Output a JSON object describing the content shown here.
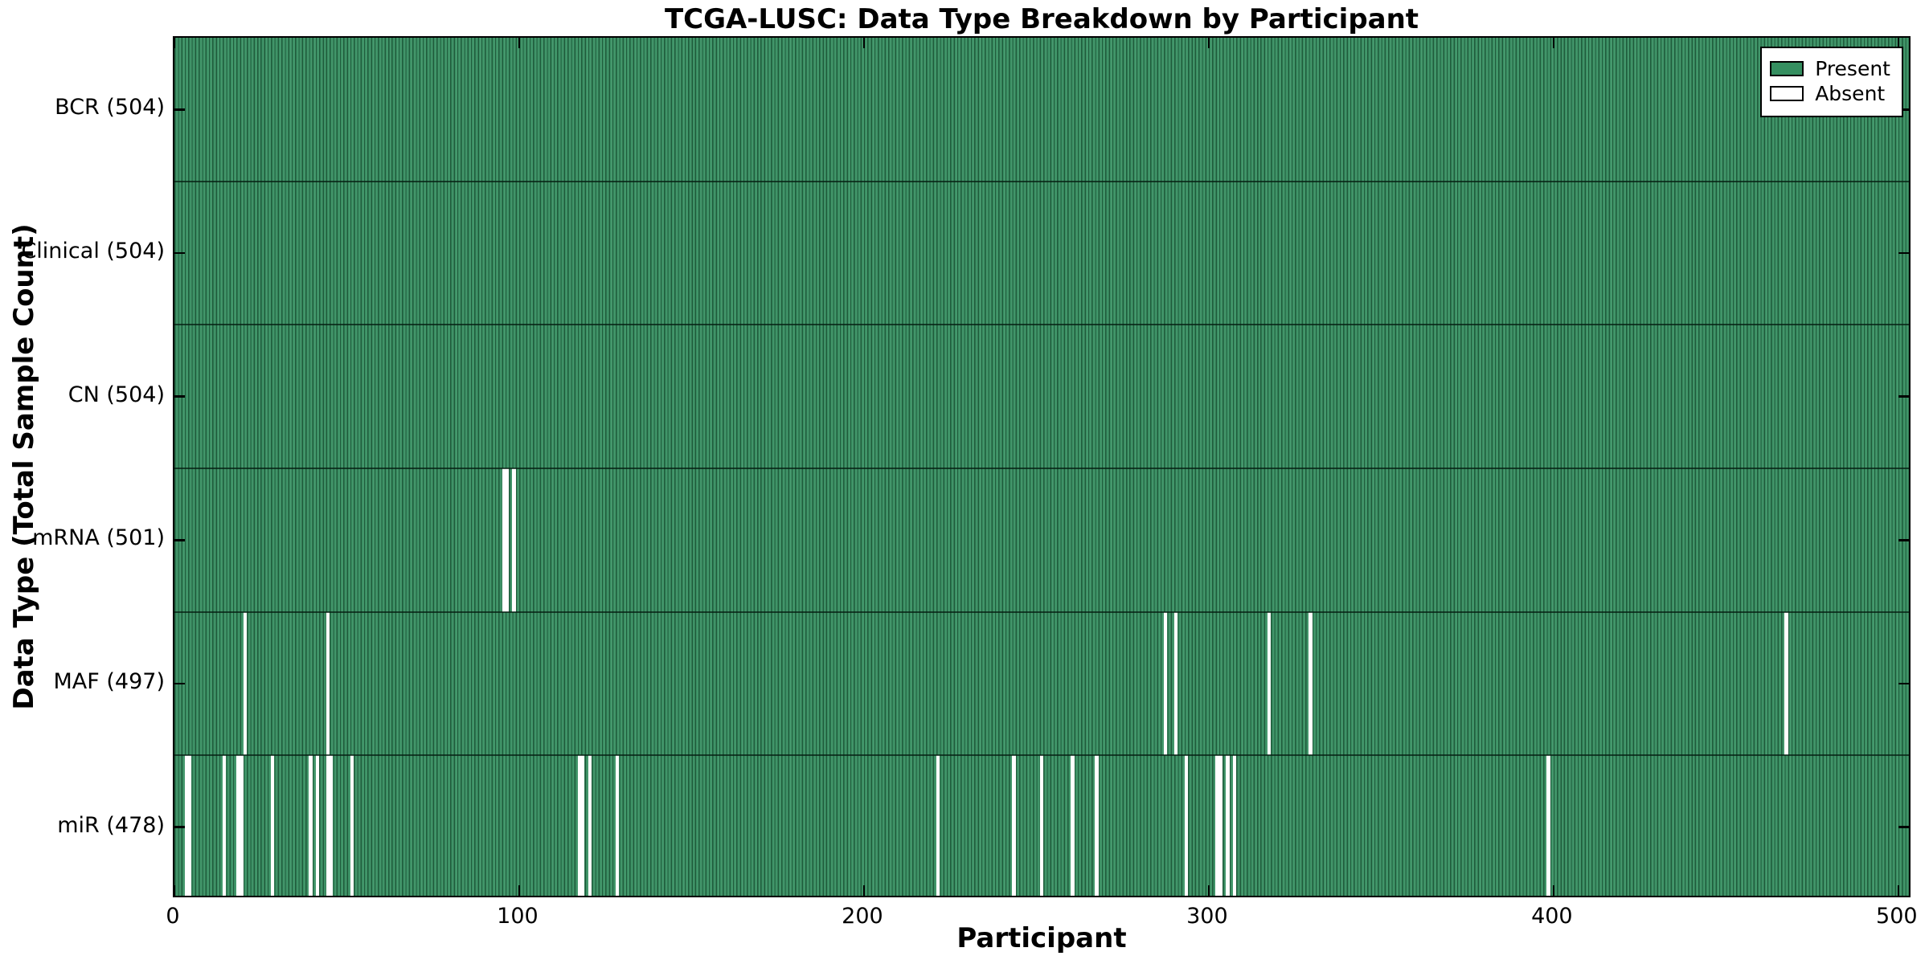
{
  "chart_data": {
    "type": "heatmap",
    "title": "TCGA-LUSC: Data Type Breakdown by Participant",
    "xlabel": "Participant",
    "ylabel": "Data Type (Total Sample Count)",
    "x_ticks": [
      0,
      100,
      200,
      300,
      400,
      500
    ],
    "x_range": [
      0,
      504
    ],
    "total_participants": 504,
    "grid": false,
    "legend_position": "upper right",
    "legend": [
      {
        "label": "Present",
        "color": "#358f60"
      },
      {
        "label": "Absent",
        "color": "#ffffff"
      }
    ],
    "colors": {
      "present_fill": "#3a8f63",
      "present_fill_light": "#45986d",
      "bar_edge": "#1f5b3b",
      "absent": "#ffffff",
      "axis": "#000000"
    },
    "rows": [
      {
        "data_type": "BCR",
        "label": "BCR (504)",
        "total": 504,
        "present_count": 504,
        "absent_participants": []
      },
      {
        "data_type": "Clinical",
        "label": "Clinical (504)",
        "total": 504,
        "present_count": 504,
        "absent_participants": []
      },
      {
        "data_type": "CN",
        "label": "CN (504)",
        "total": 504,
        "present_count": 504,
        "absent_participants": []
      },
      {
        "data_type": "mRNA",
        "label": "mRNA (501)",
        "total": 504,
        "present_count": 501,
        "absent_participants": [
          95,
          96,
          98
        ]
      },
      {
        "data_type": "MAF",
        "label": "MAF (497)",
        "total": 504,
        "present_count": 497,
        "absent_participants": [
          20,
          44,
          287,
          290,
          317,
          329,
          467
        ]
      },
      {
        "data_type": "miR",
        "label": "miR (478)",
        "total": 504,
        "present_count": 478,
        "absent_participants": [
          3,
          4,
          14,
          18,
          19,
          28,
          39,
          41,
          44,
          45,
          51,
          117,
          118,
          120,
          128,
          221,
          243,
          251,
          260,
          267,
          293,
          302,
          303,
          305,
          307,
          398
        ]
      }
    ]
  }
}
